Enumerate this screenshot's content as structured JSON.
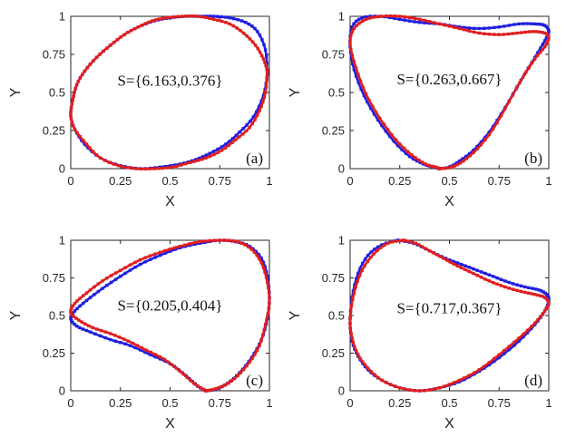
{
  "chart_data": [
    {
      "type": "line",
      "panel_label": "(a)",
      "annotation": "S={6.163,0.376}",
      "xlabel": "X",
      "ylabel": "Y",
      "xlim": [
        0,
        1
      ],
      "ylim": [
        0,
        1
      ],
      "xticks": [
        "0",
        "0.25",
        "0.5",
        "0.75",
        "1"
      ],
      "yticks": [
        "0",
        "0.25",
        "0.5",
        "0.75",
        "1"
      ],
      "series": [
        {
          "color": "#1f1fe0",
          "marker": "square",
          "x": [
            0.99,
            0.97,
            0.92,
            0.85,
            0.78,
            0.7,
            0.63,
            0.55,
            0.45,
            0.35,
            0.25,
            0.15,
            0.07,
            0.02,
            0.0,
            0.01,
            0.03,
            0.07,
            0.13,
            0.2,
            0.27,
            0.34,
            0.42,
            0.5,
            0.58,
            0.65,
            0.72,
            0.8,
            0.88,
            0.94,
            0.98,
            0.99
          ],
          "y": [
            0.62,
            0.48,
            0.34,
            0.24,
            0.16,
            0.1,
            0.06,
            0.03,
            0.01,
            0.0,
            0.02,
            0.07,
            0.16,
            0.26,
            0.35,
            0.45,
            0.55,
            0.64,
            0.73,
            0.81,
            0.88,
            0.93,
            0.97,
            0.99,
            1.0,
            1.0,
            1.0,
            0.99,
            0.96,
            0.9,
            0.78,
            0.62
          ]
        },
        {
          "color": "#e01f1f",
          "marker": "square",
          "x": [
            0.99,
            0.98,
            0.95,
            0.9,
            0.83,
            0.76,
            0.68,
            0.6,
            0.51,
            0.42,
            0.33,
            0.24,
            0.15,
            0.08,
            0.02,
            0.0,
            0.01,
            0.03,
            0.07,
            0.13,
            0.2,
            0.27,
            0.34,
            0.41,
            0.48,
            0.56,
            0.64,
            0.72,
            0.8,
            0.87,
            0.93,
            0.97,
            0.99
          ],
          "y": [
            0.64,
            0.5,
            0.38,
            0.27,
            0.19,
            0.12,
            0.07,
            0.04,
            0.01,
            0.0,
            0.0,
            0.02,
            0.07,
            0.16,
            0.26,
            0.35,
            0.45,
            0.55,
            0.64,
            0.73,
            0.81,
            0.88,
            0.93,
            0.97,
            0.99,
            1.0,
            1.0,
            0.98,
            0.95,
            0.89,
            0.81,
            0.72,
            0.64
          ]
        }
      ]
    },
    {
      "type": "line",
      "panel_label": "(b)",
      "annotation": "S={0.263,0.667}",
      "xlabel": "X",
      "ylabel": "Y",
      "xlim": [
        0,
        1
      ],
      "ylim": [
        0,
        1
      ],
      "xticks": [
        "0",
        "0.25",
        "0.5",
        "0.75",
        "1"
      ],
      "yticks": [
        "0",
        "0.25",
        "0.5",
        "0.75",
        "1"
      ],
      "series": [
        {
          "color": "#1f1fe0",
          "marker": "square",
          "x": [
            0.45,
            0.5,
            0.55,
            0.62,
            0.7,
            0.78,
            0.86,
            0.93,
            0.98,
            1.0,
            0.98,
            0.93,
            0.85,
            0.75,
            0.65,
            0.55,
            0.45,
            0.35,
            0.25,
            0.15,
            0.06,
            0.01,
            0.0,
            0.02,
            0.07,
            0.14,
            0.22,
            0.3,
            0.37,
            0.42,
            0.45
          ],
          "y": [
            0.0,
            0.01,
            0.05,
            0.12,
            0.24,
            0.4,
            0.58,
            0.73,
            0.84,
            0.9,
            0.94,
            0.95,
            0.95,
            0.93,
            0.92,
            0.93,
            0.95,
            0.96,
            0.98,
            1.0,
            0.99,
            0.93,
            0.8,
            0.65,
            0.48,
            0.32,
            0.18,
            0.08,
            0.03,
            0.01,
            0.0
          ]
        },
        {
          "color": "#e01f1f",
          "marker": "square",
          "x": [
            0.45,
            0.51,
            0.57,
            0.64,
            0.72,
            0.8,
            0.87,
            0.93,
            0.98,
            1.0,
            0.98,
            0.92,
            0.84,
            0.75,
            0.65,
            0.55,
            0.45,
            0.35,
            0.25,
            0.16,
            0.08,
            0.02,
            0.0,
            0.03,
            0.08,
            0.15,
            0.23,
            0.31,
            0.38,
            0.43,
            0.45
          ],
          "y": [
            0.0,
            0.01,
            0.05,
            0.13,
            0.26,
            0.44,
            0.6,
            0.72,
            0.8,
            0.86,
            0.89,
            0.9,
            0.89,
            0.88,
            0.89,
            0.92,
            0.95,
            0.98,
            1.0,
            1.0,
            0.98,
            0.92,
            0.82,
            0.66,
            0.49,
            0.33,
            0.19,
            0.09,
            0.03,
            0.01,
            0.0
          ]
        }
      ]
    },
    {
      "type": "line",
      "panel_label": "(c)",
      "annotation": "S={0.205,0.404}",
      "xlabel": "X",
      "ylabel": "Y",
      "xlim": [
        0,
        1
      ],
      "ylim": [
        0,
        1
      ],
      "xticks": [
        "0",
        "0.25",
        "0.5",
        "0.75",
        "1"
      ],
      "yticks": [
        "0",
        "0.25",
        "0.5",
        "0.75",
        "1"
      ],
      "series": [
        {
          "color": "#1f1fe0",
          "marker": "square",
          "x": [
            0.68,
            0.64,
            0.58,
            0.5,
            0.4,
            0.3,
            0.2,
            0.1,
            0.03,
            0.0,
            0.02,
            0.08,
            0.16,
            0.25,
            0.35,
            0.45,
            0.55,
            0.65,
            0.75,
            0.83,
            0.9,
            0.96,
            0.99,
            1.0,
            0.99,
            0.96,
            0.91,
            0.85,
            0.79,
            0.73,
            0.68
          ],
          "y": [
            0.0,
            0.03,
            0.1,
            0.18,
            0.24,
            0.3,
            0.34,
            0.39,
            0.43,
            0.48,
            0.53,
            0.6,
            0.68,
            0.76,
            0.84,
            0.9,
            0.95,
            0.98,
            1.0,
            0.99,
            0.96,
            0.88,
            0.76,
            0.62,
            0.48,
            0.34,
            0.22,
            0.12,
            0.05,
            0.01,
            0.0
          ]
        },
        {
          "color": "#e01f1f",
          "marker": "square",
          "x": [
            0.68,
            0.62,
            0.55,
            0.47,
            0.38,
            0.29,
            0.2,
            0.11,
            0.04,
            0.0,
            0.02,
            0.08,
            0.16,
            0.25,
            0.35,
            0.45,
            0.55,
            0.65,
            0.75,
            0.84,
            0.91,
            0.96,
            0.99,
            1.0,
            0.98,
            0.95,
            0.9,
            0.84,
            0.78,
            0.72,
            0.68
          ],
          "y": [
            0.0,
            0.05,
            0.13,
            0.21,
            0.27,
            0.33,
            0.38,
            0.42,
            0.47,
            0.52,
            0.58,
            0.65,
            0.73,
            0.8,
            0.87,
            0.92,
            0.96,
            0.99,
            1.0,
            0.99,
            0.94,
            0.85,
            0.72,
            0.58,
            0.44,
            0.3,
            0.19,
            0.1,
            0.04,
            0.01,
            0.0
          ]
        }
      ]
    },
    {
      "type": "line",
      "panel_label": "(d)",
      "annotation": "S={0.717,0.367}",
      "xlabel": "X",
      "ylabel": "Y",
      "xlim": [
        0,
        1
      ],
      "ylim": [
        0,
        1
      ],
      "xticks": [
        "0",
        "0.25",
        "0.5",
        "0.75",
        "1"
      ],
      "yticks": [
        "0",
        "0.25",
        "0.5",
        "0.75",
        "1"
      ],
      "series": [
        {
          "color": "#1f1fe0",
          "marker": "square",
          "x": [
            0.24,
            0.16,
            0.09,
            0.04,
            0.01,
            0.0,
            0.01,
            0.04,
            0.09,
            0.16,
            0.25,
            0.35,
            0.45,
            0.55,
            0.65,
            0.75,
            0.85,
            0.93,
            0.98,
            1.0,
            0.99,
            0.95,
            0.88,
            0.8,
            0.72,
            0.64,
            0.56,
            0.48,
            0.4,
            0.32,
            0.24
          ],
          "y": [
            1.0,
            0.97,
            0.9,
            0.78,
            0.62,
            0.45,
            0.33,
            0.23,
            0.14,
            0.07,
            0.02,
            0.0,
            0.02,
            0.06,
            0.13,
            0.22,
            0.33,
            0.44,
            0.53,
            0.6,
            0.64,
            0.67,
            0.69,
            0.72,
            0.76,
            0.8,
            0.84,
            0.88,
            0.93,
            0.98,
            1.0
          ]
        },
        {
          "color": "#e01f1f",
          "marker": "square",
          "x": [
            0.27,
            0.19,
            0.12,
            0.06,
            0.02,
            0.0,
            0.01,
            0.04,
            0.09,
            0.16,
            0.25,
            0.35,
            0.45,
            0.55,
            0.65,
            0.75,
            0.85,
            0.93,
            0.98,
            1.0,
            0.98,
            0.93,
            0.86,
            0.78,
            0.7,
            0.62,
            0.54,
            0.47,
            0.4,
            0.33,
            0.27
          ],
          "y": [
            1.0,
            0.98,
            0.91,
            0.8,
            0.65,
            0.48,
            0.35,
            0.24,
            0.15,
            0.07,
            0.02,
            0.0,
            0.02,
            0.07,
            0.14,
            0.24,
            0.35,
            0.45,
            0.53,
            0.58,
            0.62,
            0.64,
            0.66,
            0.69,
            0.73,
            0.78,
            0.83,
            0.88,
            0.93,
            0.98,
            1.0
          ]
        }
      ]
    }
  ]
}
